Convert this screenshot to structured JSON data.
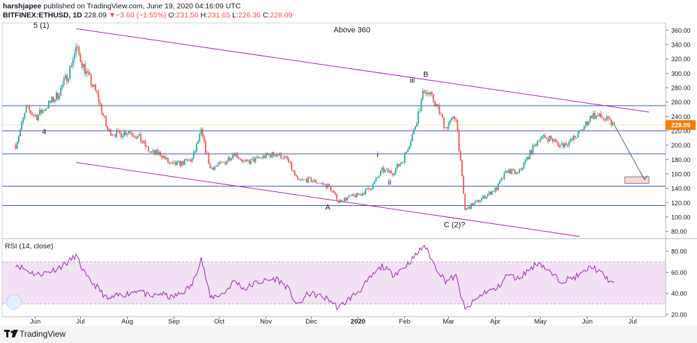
{
  "header": {
    "author": "harshjapee",
    "published_text": "published on TradingView.com, June 19, 2020 04:16:09 UTC",
    "symbol": "BITFINEX:ETHUSD, 1D",
    "last": "228.09",
    "change": "−3.60 (−1.55%)",
    "o_label": "O:",
    "o": "231.50",
    "h_label": "H:",
    "h": "231.65",
    "l_label": "L:",
    "l": "226.36",
    "c_label": "C:",
    "c": "228.09"
  },
  "footer": {
    "brand": "TradingView"
  },
  "colors": {
    "up": "#26a69a",
    "down": "#ef5350",
    "channel": "#9c27b0",
    "hline": "#3f51b5",
    "rsi": "#9c27b0",
    "rsi_band": "#e1bee7",
    "price_tag": "#f57c00"
  },
  "chart_data": [
    {
      "type": "candlestick",
      "symbol": "BITFINEX:ETHUSD",
      "timeframe": "1D",
      "y_ticks": [
        "360.00",
        "340.00",
        "320.00",
        "300.00",
        "280.00",
        "260.00",
        "240.00",
        "220.00",
        "200.00",
        "180.00",
        "160.00",
        "140.00",
        "120.00",
        "100.00",
        "80.00"
      ],
      "ylim": [
        70,
        370
      ],
      "x_ticks": [
        "Jun",
        "Jul",
        "Aug",
        "Sep",
        "Oct",
        "Nov",
        "Dec",
        "2020",
        "Feb",
        "Mar",
        "Apr",
        "May",
        "Jun",
        "Jul"
      ],
      "last_price_label": "228.09",
      "horizontal_levels": [
        255,
        220,
        188,
        143,
        116
      ],
      "channel_upper": [
        {
          "x": "2019-06-28",
          "y": 362
        },
        {
          "x": "2020-07-12",
          "y": 246
        }
      ],
      "channel_lower": [
        {
          "x": "2019-06-28",
          "y": 176
        },
        {
          "x": "2020-05-27",
          "y": 73
        }
      ],
      "projection_box": {
        "x_start": "2020-06-26",
        "x_end": "2020-07-12",
        "y_low": 147,
        "y_high": 156
      },
      "projection_arrow": [
        {
          "x": "2020-06-19",
          "y": 228
        },
        {
          "x": "2020-07-09",
          "y": 152
        }
      ],
      "annotations": [
        {
          "text": "5 (1)",
          "x": "2019-06-05",
          "y": 363
        },
        {
          "text": "Above 360",
          "x": "2019-12-28",
          "y": 357
        },
        {
          "text": "4",
          "x": "2019-06-07",
          "y": 215
        },
        {
          "text": "B",
          "x": "2020-02-15",
          "y": 295
        },
        {
          "text": "iii",
          "x": "2020-02-06",
          "y": 287
        },
        {
          "text": "i",
          "x": "2020-01-14",
          "y": 183
        },
        {
          "text": "ii",
          "x": "2020-01-22",
          "y": 145
        },
        {
          "text": "A",
          "x": "2019-12-12",
          "y": 110
        },
        {
          "text": "C (2)?",
          "x": "2020-03-05",
          "y": 86
        }
      ],
      "closes_weekly": [
        {
          "x": "2019-05-19",
          "y": 200
        },
        {
          "x": "2019-05-26",
          "y": 250
        },
        {
          "x": "2019-06-02",
          "y": 240
        },
        {
          "x": "2019-06-09",
          "y": 255
        },
        {
          "x": "2019-06-16",
          "y": 270
        },
        {
          "x": "2019-06-23",
          "y": 300
        },
        {
          "x": "2019-06-28",
          "y": 335
        },
        {
          "x": "2019-07-05",
          "y": 300
        },
        {
          "x": "2019-07-12",
          "y": 270
        },
        {
          "x": "2019-07-19",
          "y": 220
        },
        {
          "x": "2019-07-26",
          "y": 215
        },
        {
          "x": "2019-08-02",
          "y": 220
        },
        {
          "x": "2019-08-09",
          "y": 210
        },
        {
          "x": "2019-08-16",
          "y": 190
        },
        {
          "x": "2019-08-23",
          "y": 188
        },
        {
          "x": "2019-08-30",
          "y": 172
        },
        {
          "x": "2019-09-06",
          "y": 175
        },
        {
          "x": "2019-09-13",
          "y": 180
        },
        {
          "x": "2019-09-19",
          "y": 218
        },
        {
          "x": "2019-09-25",
          "y": 168
        },
        {
          "x": "2019-10-04",
          "y": 175
        },
        {
          "x": "2019-10-11",
          "y": 190
        },
        {
          "x": "2019-10-18",
          "y": 175
        },
        {
          "x": "2019-10-25",
          "y": 180
        },
        {
          "x": "2019-11-01",
          "y": 185
        },
        {
          "x": "2019-11-08",
          "y": 188
        },
        {
          "x": "2019-11-15",
          "y": 180
        },
        {
          "x": "2019-11-22",
          "y": 150
        },
        {
          "x": "2019-11-29",
          "y": 152
        },
        {
          "x": "2019-12-06",
          "y": 148
        },
        {
          "x": "2019-12-13",
          "y": 142
        },
        {
          "x": "2019-12-19",
          "y": 122
        },
        {
          "x": "2019-12-27",
          "y": 128
        },
        {
          "x": "2020-01-03",
          "y": 132
        },
        {
          "x": "2020-01-10",
          "y": 142
        },
        {
          "x": "2020-01-17",
          "y": 165
        },
        {
          "x": "2020-01-24",
          "y": 162
        },
        {
          "x": "2020-01-31",
          "y": 180
        },
        {
          "x": "2020-02-07",
          "y": 220
        },
        {
          "x": "2020-02-14",
          "y": 278
        },
        {
          "x": "2020-02-21",
          "y": 260
        },
        {
          "x": "2020-02-28",
          "y": 225
        },
        {
          "x": "2020-03-06",
          "y": 240
        },
        {
          "x": "2020-03-12",
          "y": 110
        },
        {
          "x": "2020-03-19",
          "y": 120
        },
        {
          "x": "2020-03-26",
          "y": 130
        },
        {
          "x": "2020-04-02",
          "y": 140
        },
        {
          "x": "2020-04-09",
          "y": 165
        },
        {
          "x": "2020-04-16",
          "y": 160
        },
        {
          "x": "2020-04-23",
          "y": 185
        },
        {
          "x": "2020-04-30",
          "y": 210
        },
        {
          "x": "2020-05-07",
          "y": 210
        },
        {
          "x": "2020-05-14",
          "y": 200
        },
        {
          "x": "2020-05-21",
          "y": 205
        },
        {
          "x": "2020-05-28",
          "y": 220
        },
        {
          "x": "2020-06-04",
          "y": 242
        },
        {
          "x": "2020-06-11",
          "y": 238
        },
        {
          "x": "2020-06-19",
          "y": 228
        }
      ]
    },
    {
      "type": "line",
      "title": "RSI (14, close)",
      "y_ticks": [
        "80.00",
        "60.00",
        "40.00",
        "20.00"
      ],
      "ylim": [
        18,
        92
      ],
      "band": [
        30,
        70
      ],
      "values_weekly": [
        {
          "x": "2019-05-19",
          "y": 68
        },
        {
          "x": "2019-05-26",
          "y": 62
        },
        {
          "x": "2019-06-02",
          "y": 58
        },
        {
          "x": "2019-06-09",
          "y": 60
        },
        {
          "x": "2019-06-16",
          "y": 64
        },
        {
          "x": "2019-06-23",
          "y": 70
        },
        {
          "x": "2019-06-28",
          "y": 76
        },
        {
          "x": "2019-07-05",
          "y": 55
        },
        {
          "x": "2019-07-12",
          "y": 46
        },
        {
          "x": "2019-07-19",
          "y": 34
        },
        {
          "x": "2019-07-26",
          "y": 38
        },
        {
          "x": "2019-08-02",
          "y": 40
        },
        {
          "x": "2019-08-09",
          "y": 44
        },
        {
          "x": "2019-08-16",
          "y": 36
        },
        {
          "x": "2019-08-23",
          "y": 40
        },
        {
          "x": "2019-08-30",
          "y": 36
        },
        {
          "x": "2019-09-06",
          "y": 40
        },
        {
          "x": "2019-09-13",
          "y": 48
        },
        {
          "x": "2019-09-19",
          "y": 74
        },
        {
          "x": "2019-09-25",
          "y": 36
        },
        {
          "x": "2019-10-04",
          "y": 40
        },
        {
          "x": "2019-10-11",
          "y": 52
        },
        {
          "x": "2019-10-18",
          "y": 44
        },
        {
          "x": "2019-10-25",
          "y": 50
        },
        {
          "x": "2019-11-01",
          "y": 52
        },
        {
          "x": "2019-11-08",
          "y": 54
        },
        {
          "x": "2019-11-15",
          "y": 46
        },
        {
          "x": "2019-11-22",
          "y": 28
        },
        {
          "x": "2019-11-29",
          "y": 40
        },
        {
          "x": "2019-12-06",
          "y": 38
        },
        {
          "x": "2019-12-13",
          "y": 34
        },
        {
          "x": "2019-12-19",
          "y": 26
        },
        {
          "x": "2019-12-27",
          "y": 36
        },
        {
          "x": "2020-01-03",
          "y": 44
        },
        {
          "x": "2020-01-10",
          "y": 56
        },
        {
          "x": "2020-01-17",
          "y": 66
        },
        {
          "x": "2020-01-24",
          "y": 58
        },
        {
          "x": "2020-01-31",
          "y": 64
        },
        {
          "x": "2020-02-07",
          "y": 74
        },
        {
          "x": "2020-02-14",
          "y": 86
        },
        {
          "x": "2020-02-21",
          "y": 66
        },
        {
          "x": "2020-02-28",
          "y": 52
        },
        {
          "x": "2020-03-06",
          "y": 56
        },
        {
          "x": "2020-03-12",
          "y": 24
        },
        {
          "x": "2020-03-19",
          "y": 34
        },
        {
          "x": "2020-03-26",
          "y": 42
        },
        {
          "x": "2020-04-02",
          "y": 44
        },
        {
          "x": "2020-04-09",
          "y": 58
        },
        {
          "x": "2020-04-16",
          "y": 54
        },
        {
          "x": "2020-04-23",
          "y": 62
        },
        {
          "x": "2020-04-30",
          "y": 70
        },
        {
          "x": "2020-05-07",
          "y": 60
        },
        {
          "x": "2020-05-14",
          "y": 52
        },
        {
          "x": "2020-05-21",
          "y": 54
        },
        {
          "x": "2020-05-28",
          "y": 58
        },
        {
          "x": "2020-06-04",
          "y": 66
        },
        {
          "x": "2020-06-11",
          "y": 58
        },
        {
          "x": "2020-06-19",
          "y": 48
        }
      ]
    }
  ]
}
